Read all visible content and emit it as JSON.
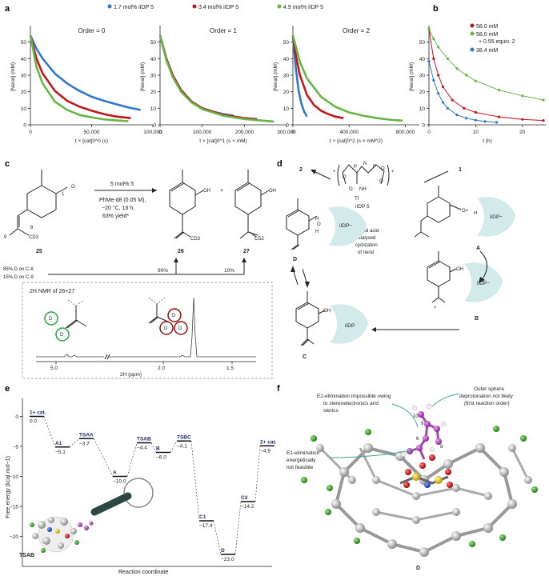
{
  "panel_labels": {
    "a": "a",
    "b": "b",
    "c": "c",
    "d": "d",
    "e": "e",
    "f": "f"
  },
  "panel_a": {
    "legend": [
      "1.7 mol% iIDP 5",
      "3.4 mol% iIDP 5",
      "4.9 mol% iIDP 5"
    ],
    "colors": [
      "#2f78c8",
      "#c0161c",
      "#66b545"
    ],
    "ylabel": "[Neral] (mM)"
  },
  "panel_b": {
    "legend": [
      "58.0 mM",
      "58.0 mM",
      "+ 0.55 equiv. 2",
      "38.4 mM"
    ],
    "colors": [
      "#c0161c",
      "#66b545",
      "#2f78c8"
    ],
    "xlabel": "t (h)"
  },
  "panel_c": {
    "reagent1": "5 mol% 5",
    "reagent2": "PhMe-d8 (0.05 M),",
    "reagent3": "−20 °C, 16 h,",
    "reagent4": "63% yield*",
    "labels": {
      "c25": "25",
      "c26": "26",
      "c27": "27",
      "plus": "+",
      "n1": "1",
      "n8": "8",
      "n9": "9",
      "o": "O",
      "oh1": "OH",
      "oh2": "OH",
      "cd3a": "CD3",
      "cd3b": "CD3",
      "cd2": "CD2"
    },
    "d_dist1": "85% D on C-8",
    "d_dist2": "15% D on C-9",
    "split1": "90%",
    "split2": "10%",
    "nmr_title": "2H NMR of 26+27",
    "nmr_xlabel": "2H (ppm)",
    "nmr_ticks": [
      "5.0",
      "2.0",
      "1.5"
    ],
    "d_letter": "D"
  },
  "panel_d": {
    "cat_name": "iIDP 5",
    "cat_atoms": {
      "o1": "O",
      "o2": "O",
      "o3": "O",
      "o4": "O",
      "p1": "P",
      "p2": "P",
      "n1": "N",
      "n2": "N",
      "nh": "NH",
      "tf": "Tf",
      "plus1": "+",
      "plus2": "+"
    },
    "num_in": "1",
    "num_out": "2",
    "center1": "Brønsted acid-",
    "center2": "catalysed",
    "center3": "cyclization",
    "center4": "of neral",
    "intermediates": [
      "A",
      "B",
      "C",
      "D"
    ],
    "iidp_minus": "iIDP−",
    "iidp": "iIDP",
    "atoms": {
      "oplus": "O+",
      "h": "H",
      "oh": "OH",
      "o": "O",
      "h2": "H",
      "h3": "H",
      "plus": "+"
    }
  },
  "panel_e": {
    "ylabel": "Free energy (kcal mol−1)",
    "xlabel": "Reaction coordinate",
    "yticks": [
      "0",
      "−5",
      "−10",
      "−15",
      "−20"
    ],
    "states": [
      {
        "name": "1+ cat.",
        "energy": 0.0,
        "label": "0.0"
      },
      {
        "name": "A1",
        "energy": -5.1,
        "label": "−5.1"
      },
      {
        "name": "TSAA",
        "energy": -3.7,
        "label": "−3.7"
      },
      {
        "name": "A",
        "energy": -10.0,
        "label": "−10.0"
      },
      {
        "name": "TSAB",
        "energy": -4.4,
        "label": "−4.4"
      },
      {
        "name": "B",
        "energy": -6.0,
        "label": "−6.0"
      },
      {
        "name": "TSBC",
        "energy": -4.1,
        "label": "−4.1"
      },
      {
        "name": "C1",
        "energy": -17.4,
        "label": "−17.4"
      },
      {
        "name": "D",
        "energy": -23.0,
        "label": "−23.0"
      },
      {
        "name": "C2",
        "energy": -14.2,
        "label": "−14.2"
      },
      {
        "name": "2+ cat.",
        "energy": -4.9,
        "label": "−4.9"
      }
    ],
    "inset_label": "TSAB"
  },
  "panel_f": {
    "note1a": "E2-elimination impossible owing",
    "note1b": "to stereoelectronics and",
    "note1c": "sterics",
    "note2a": "Outer sphere",
    "note2b": "deprotonation not likely",
    "note2c": "(first reaction order)",
    "note3a": "E1-elimination",
    "note3b": "energetically",
    "note3c": "not feasible",
    "atom_labels": [
      "10",
      "9",
      "6",
      "8"
    ],
    "mol_label": "D"
  },
  "chart_data": [
    {
      "type": "line",
      "panel": "a1",
      "title": "Order = 0",
      "xlabel": "t × [cat]0^0 (s)",
      "ylabel": "[Neral] (mM)",
      "xlim": [
        0,
        100000
      ],
      "ylim": [
        0,
        60
      ],
      "xticks": [
        "0",
        "50,000",
        "100,000"
      ],
      "yticks": [
        0,
        10,
        20,
        30,
        40,
        50
      ],
      "series": [
        {
          "name": "1.7 mol% iIDP 5",
          "color": "#2f78c8",
          "x": [
            0,
            5000,
            10000,
            20000,
            30000,
            40000,
            50000,
            60000,
            70000,
            80000,
            90000
          ],
          "y": [
            54,
            46,
            40,
            31,
            25,
            20.5,
            17,
            14.5,
            12.5,
            10.5,
            9
          ]
        },
        {
          "name": "3.4 mol% iIDP 5",
          "color": "#c0161c",
          "x": [
            0,
            5000,
            10000,
            20000,
            30000,
            40000,
            50000,
            60000,
            70000,
            82000
          ],
          "y": [
            54,
            40,
            31,
            20.5,
            14.5,
            11,
            8.5,
            6.5,
            5,
            4
          ]
        },
        {
          "name": "4.9 mol% iIDP 5",
          "color": "#66b545",
          "x": [
            0,
            5000,
            10000,
            20000,
            30000,
            40000,
            50000,
            60000,
            70000,
            80000
          ],
          "y": [
            54,
            35,
            25,
            14,
            9,
            6,
            4.5,
            3.3,
            2.7,
            2.2
          ]
        }
      ]
    },
    {
      "type": "line",
      "panel": "a2",
      "title": "Order = 1",
      "xlabel": "t × [cat]0^1 (s × mM)",
      "ylabel": "[Neral] (mM)",
      "xlim": [
        0,
        300000
      ],
      "ylim": [
        0,
        60
      ],
      "xticks": [
        "0",
        "100,000",
        "200,000",
        "300,000"
      ],
      "yticks": [
        0,
        10,
        20,
        30,
        40,
        50
      ],
      "series": [
        {
          "name": "1.7 mol% iIDP 5",
          "color": "#2f78c8",
          "x": [
            0,
            15000,
            30000,
            50000,
            75000,
            100000,
            125000,
            150000,
            175000
          ],
          "y": [
            54,
            40,
            30,
            21,
            14,
            10,
            8,
            6.5,
            5.5
          ]
        },
        {
          "name": "3.4 mol% iIDP 5",
          "color": "#c0161c",
          "x": [
            0,
            15000,
            30000,
            50000,
            75000,
            100000,
            150000,
            200000,
            230000
          ],
          "y": [
            54,
            40,
            30,
            21,
            14,
            10,
            6,
            4,
            3.5
          ]
        },
        {
          "name": "4.9 mol% iIDP 5",
          "color": "#66b545",
          "x": [
            0,
            15000,
            30000,
            50000,
            75000,
            100000,
            150000,
            200000,
            270000
          ],
          "y": [
            54,
            39,
            29,
            20,
            13.5,
            9.5,
            5.5,
            3.5,
            2
          ]
        }
      ]
    },
    {
      "type": "line",
      "panel": "a3",
      "title": "Order = 2",
      "xlabel": "t × [cat]0^2 (s × mM^2)",
      "ylabel": "[Neral] (mM)",
      "xlim": [
        0,
        900000
      ],
      "ylim": [
        0,
        60
      ],
      "xticks": [
        "0",
        "400,000",
        "800,000"
      ],
      "yticks": [
        0,
        10,
        20,
        30,
        40,
        50
      ],
      "series": [
        {
          "name": "1.7 mol% iIDP 5",
          "color": "#2f78c8",
          "x": [
            0,
            20000,
            40000,
            60000,
            80000,
            100000
          ],
          "y": [
            54,
            35,
            21,
            13,
            8,
            5
          ]
        },
        {
          "name": "3.4 mol% iIDP 5",
          "color": "#c0161c",
          "x": [
            0,
            25000,
            50000,
            100000,
            150000,
            200000,
            250000,
            300000,
            360000
          ],
          "y": [
            54,
            40,
            30,
            18,
            12,
            8.5,
            6.5,
            5,
            4
          ]
        },
        {
          "name": "4.9 mol% iIDP 5",
          "color": "#66b545",
          "x": [
            0,
            50000,
            100000,
            200000,
            300000,
            400000,
            500000,
            600000,
            700000,
            780000
          ],
          "y": [
            54,
            38,
            28,
            17,
            11,
            7.5,
            5.5,
            4,
            3,
            2.5
          ]
        }
      ]
    },
    {
      "type": "scatter",
      "panel": "b",
      "title": "",
      "xlabel": "t (h)",
      "ylabel": "[Neral] (mM)",
      "xlim": [
        0,
        25
      ],
      "ylim": [
        0,
        60
      ],
      "xticks": [
        "0",
        "10",
        "20"
      ],
      "yticks": [
        0,
        10,
        20,
        30,
        40,
        50
      ],
      "series": [
        {
          "name": "58.0 mM",
          "color": "#c0161c",
          "x": [
            0,
            1,
            2,
            3,
            5,
            7.5,
            10,
            15,
            20,
            24.5
          ],
          "y": [
            58,
            40,
            30,
            23,
            15,
            10,
            7.5,
            4.8,
            3.3,
            2.6
          ]
        },
        {
          "name": "58.0 mM + 0.55 equiv. 2",
          "color": "#66b545",
          "x": [
            0,
            1,
            2,
            4,
            6,
            8,
            10,
            15,
            20,
            24.5
          ],
          "y": [
            58,
            52,
            47,
            40,
            34,
            30,
            26.5,
            21,
            17.5,
            15
          ]
        },
        {
          "name": "38.4 mM",
          "color": "#2f78c8",
          "x": [
            0,
            1,
            2,
            3,
            4,
            6,
            8,
            10,
            12,
            14.5
          ],
          "y": [
            38.4,
            27,
            19,
            13.5,
            10,
            6,
            4,
            2.8,
            2,
            1.5
          ]
        }
      ]
    }
  ]
}
